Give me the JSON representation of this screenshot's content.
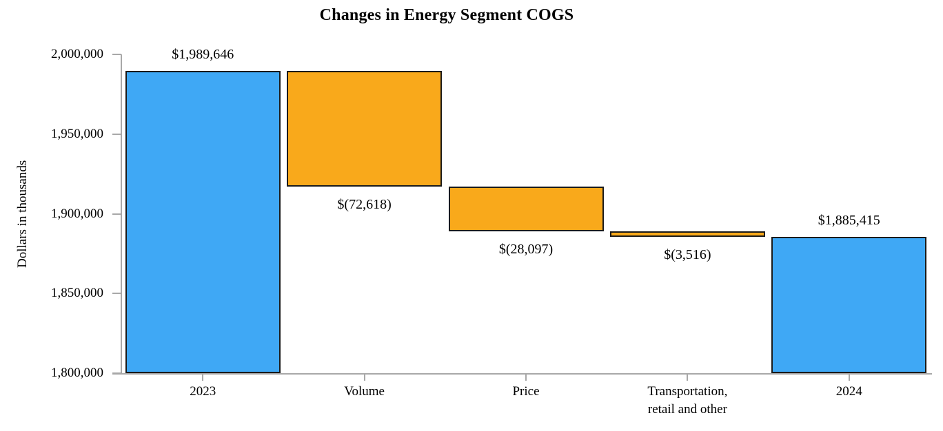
{
  "chart_data": {
    "type": "waterfall",
    "title": "Changes in Energy Segment COGS",
    "ylabel": "Dollars in thousands",
    "xlabel": "",
    "ylim": [
      1800000,
      2000000
    ],
    "grid": false,
    "legend": false,
    "yticks": [
      {
        "value": 2000000,
        "label": "2,000,000"
      },
      {
        "value": 1950000,
        "label": "1,950,000"
      },
      {
        "value": 1900000,
        "label": "1,900,000"
      },
      {
        "value": 1850000,
        "label": "1,850,000"
      },
      {
        "value": 1800000,
        "label": "1,800,000"
      }
    ],
    "colors": {
      "total": "#3fa8f5",
      "change": "#f9a91b",
      "bar_border": "#1a1a1a",
      "axis": "#a8a8a8",
      "text": "#000000"
    },
    "bars": [
      {
        "id": "2023",
        "category": "2023",
        "kind": "total",
        "start": 1800000,
        "end": 1989646,
        "value": 1989646,
        "value_label": "$1,989,646",
        "label_position": "above",
        "color_key": "total"
      },
      {
        "id": "volume",
        "category": "Volume",
        "kind": "change",
        "start": 1989646,
        "end": 1917028,
        "value": -72618,
        "value_label": "$(72,618)",
        "label_position": "below",
        "color_key": "change"
      },
      {
        "id": "price",
        "category": "Price",
        "kind": "change",
        "start": 1917028,
        "end": 1888931,
        "value": -28097,
        "value_label": "$(28,097)",
        "label_position": "below",
        "color_key": "change"
      },
      {
        "id": "transportation-retail-other",
        "category": "Transportation,\nretail and other",
        "kind": "change",
        "start": 1888931,
        "end": 1885415,
        "value": -3516,
        "value_label": "$(3,516)",
        "label_position": "below",
        "color_key": "change"
      },
      {
        "id": "2024",
        "category": "2024",
        "kind": "total",
        "start": 1800000,
        "end": 1885415,
        "value": 1885415,
        "value_label": "$1,885,415",
        "label_position": "above",
        "color_key": "total"
      }
    ]
  }
}
